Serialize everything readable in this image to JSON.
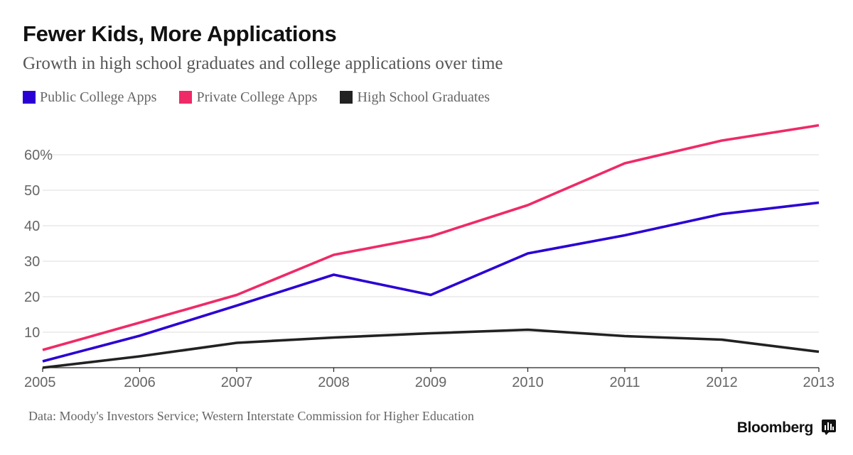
{
  "header": {
    "title": "Fewer Kids, More Applications",
    "subtitle": "Growth in high school graduates and college applications over time"
  },
  "chart_data": {
    "type": "line",
    "title": "Fewer Kids, More Applications",
    "subtitle": "Growth in high school graduates and college applications over time",
    "xlabel": "",
    "ylabel": "",
    "x": [
      "2005",
      "2006",
      "2007",
      "2008",
      "2009",
      "2010",
      "2011",
      "2012",
      "2013"
    ],
    "ylim": [
      0,
      70
    ],
    "yticks": [
      10,
      20,
      30,
      40,
      50,
      60
    ],
    "ytick_labels": [
      "10",
      "20",
      "30",
      "40",
      "50",
      "60%"
    ],
    "grid": true,
    "legend_placement": "top-left",
    "series": [
      {
        "name": "Public College Apps",
        "color": "#2b00d4",
        "values": [
          1.8,
          9.0,
          17.5,
          26.2,
          20.5,
          32.2,
          37.3,
          43.3,
          46.5
        ]
      },
      {
        "name": "Private College Apps",
        "color": "#ef2a67",
        "values": [
          5.0,
          12.7,
          20.5,
          31.8,
          37.0,
          45.8,
          57.6,
          64.0,
          68.3
        ]
      },
      {
        "name": "High School Graduates",
        "color": "#222222",
        "values": [
          0.0,
          3.2,
          7.0,
          8.5,
          9.7,
          10.7,
          8.9,
          7.9,
          4.5
        ]
      }
    ]
  },
  "footer": {
    "source": "Data: Moody's Investors Service; Western Interstate Commission for Higher Education",
    "brand": "Bloomberg",
    "brand_icon": "bloomberg-terminal-icon"
  }
}
